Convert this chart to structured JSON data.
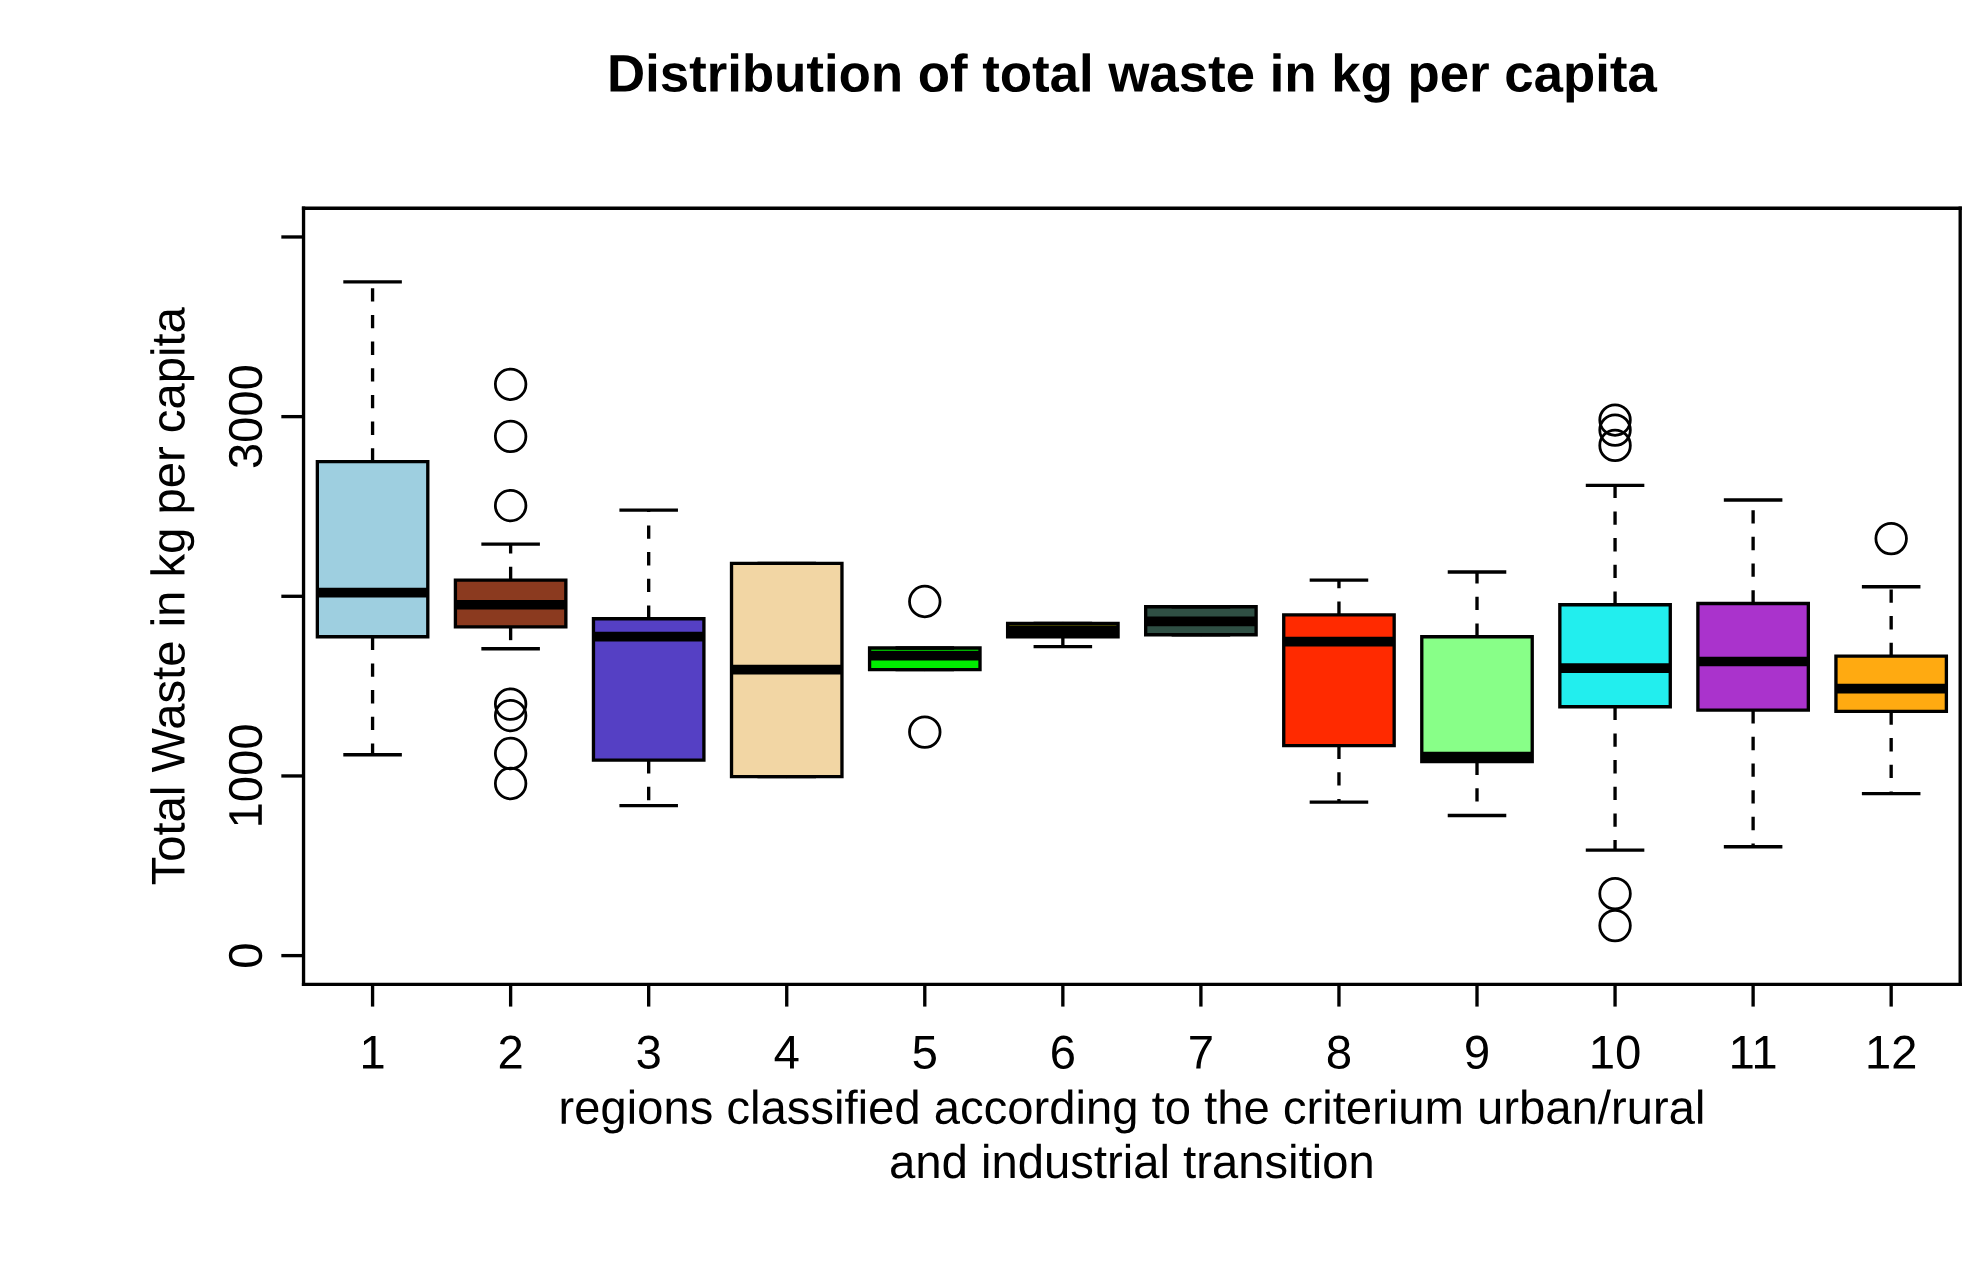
{
  "chart_data": {
    "type": "box",
    "title": "Distribution of total waste in kg per capita",
    "xlabel": "regions classified according to the criterium urban/rural\nand industrial transition",
    "ylabel": "Total Waste in kg per capita",
    "categories": [
      "1",
      "2",
      "3",
      "4",
      "5",
      "6",
      "7",
      "8",
      "9",
      "10",
      "11",
      "12"
    ],
    "colors": [
      "#9ecfe0",
      "#8b3a1f",
      "#5540c4",
      "#f2d6a4",
      "#00ee00",
      "#eeee00",
      "#2f4f44",
      "#ff2a00",
      "#88ff88",
      "#22eeee",
      "#aa33cc",
      "#ffaa11"
    ],
    "boxes": [
      {
        "low": 1118,
        "q1": 1775,
        "median": 2020,
        "q3": 2750,
        "high": 3750
      },
      {
        "low": 1708,
        "q1": 1830,
        "median": 1953,
        "q3": 2090,
        "high": 2290,
        "outliers": [
          3180,
          2890,
          2505,
          1400,
          1336,
          1125,
          958
        ]
      },
      {
        "low": 835,
        "q1": 1088,
        "median": 1775,
        "q3": 1875,
        "high": 2480
      },
      {
        "low": 996,
        "q1": 996,
        "median": 1592,
        "q3": 2183,
        "high": 2183
      },
      {
        "low": 1592,
        "q1": 1592,
        "median": 1670,
        "q3": 1712,
        "high": 1712,
        "outliers": [
          1971,
          1244
        ]
      },
      {
        "low": 1720,
        "q1": 1775,
        "median": 1812,
        "q3": 1849,
        "high": 1849
      },
      {
        "low": 1786,
        "q1": 1786,
        "median": 1860,
        "q3": 1942,
        "high": 1942
      },
      {
        "low": 854,
        "q1": 1169,
        "median": 1748,
        "q3": 1897,
        "high": 2090
      },
      {
        "low": 780,
        "q1": 1080,
        "median": 1107,
        "q3": 1775,
        "high": 2135
      },
      {
        "low": 587,
        "q1": 1385,
        "median": 1600,
        "q3": 1953,
        "high": 2617,
        "outliers": [
          2981,
          2925,
          2840,
          345,
          167
        ]
      },
      {
        "low": 606,
        "q1": 1366,
        "median": 1637,
        "q3": 1960,
        "high": 2536
      },
      {
        "low": 902,
        "q1": 1359,
        "median": 1486,
        "q3": 1667,
        "high": 2053,
        "outliers": [
          2321
        ]
      }
    ],
    "ylim": [
      -160,
      4160
    ],
    "yticks": [
      0,
      1000,
      {
        "value": 2000,
        "label": null
      },
      3000,
      {
        "value": 4000,
        "label": null
      }
    ],
    "marker": "circle",
    "grid": false
  }
}
